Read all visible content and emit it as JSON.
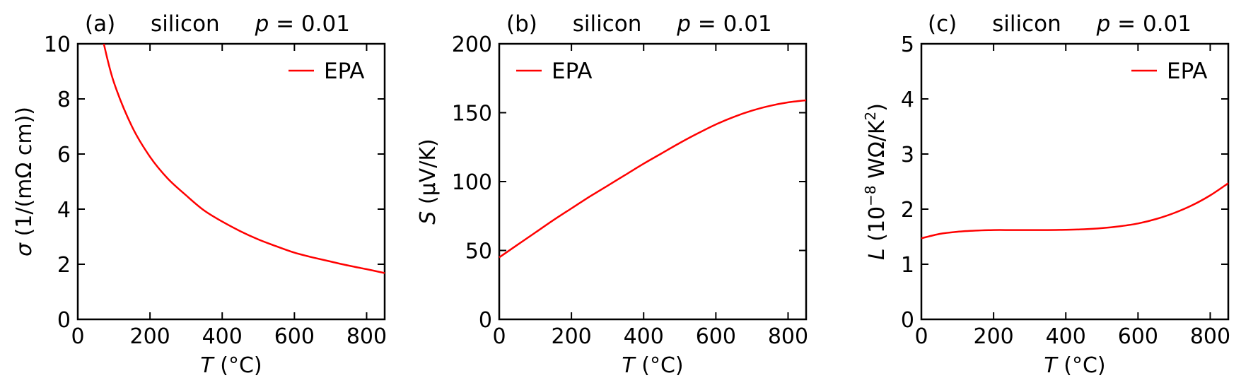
{
  "chart_data": [
    {
      "type": "line",
      "panel_label": "(a)",
      "material": "silicon",
      "param_var": "p",
      "param_rest": " = 0.01",
      "xlabel_var": "T",
      "xlabel_rest": " (°C)",
      "ylabel_var": "σ",
      "ylabel_rest": " (1/(mΩ cm))",
      "xlim": [
        0,
        850
      ],
      "ylim": [
        0,
        10
      ],
      "xticks": [
        "0",
        "200",
        "400",
        "600",
        "800"
      ],
      "yticks": [
        "0",
        "2",
        "4",
        "6",
        "8",
        "10"
      ],
      "legend_position": "top-right",
      "series": [
        {
          "name": "EPA",
          "color": "#ff0000",
          "x": [
            72,
            100,
            150,
            200,
            250,
            300,
            350,
            400,
            450,
            500,
            550,
            600,
            650,
            700,
            750,
            800,
            850
          ],
          "y": [
            10.0,
            8.6,
            7.0,
            5.9,
            5.1,
            4.5,
            3.95,
            3.55,
            3.2,
            2.9,
            2.65,
            2.42,
            2.25,
            2.1,
            1.95,
            1.82,
            1.68
          ]
        }
      ]
    },
    {
      "type": "line",
      "panel_label": "(b)",
      "material": "silicon",
      "param_var": "p",
      "param_rest": " = 0.01",
      "xlabel_var": "T",
      "xlabel_rest": " (°C)",
      "ylabel_var": "S",
      "ylabel_rest": " (μV/K)",
      "xlim": [
        0,
        850
      ],
      "ylim": [
        0,
        200
      ],
      "xticks": [
        "0",
        "200",
        "400",
        "600",
        "800"
      ],
      "yticks": [
        "0",
        "50",
        "100",
        "150",
        "200"
      ],
      "legend_position": "top-left",
      "series": [
        {
          "name": "EPA",
          "color": "#ff0000",
          "x": [
            0,
            50,
            100,
            150,
            200,
            250,
            300,
            350,
            400,
            450,
            500,
            550,
            600,
            650,
            700,
            750,
            800,
            850
          ],
          "y": [
            45,
            54,
            63,
            72,
            80.5,
            89,
            97,
            105,
            113,
            120.5,
            128,
            135,
            141.5,
            147,
            151.5,
            155,
            157.5,
            159
          ]
        }
      ]
    },
    {
      "type": "line",
      "panel_label": "(c)",
      "material": "silicon",
      "param_var": "p",
      "param_rest": " = 0.01",
      "xlabel_var": "T",
      "xlabel_rest": " (°C)",
      "ylabel_var": "L",
      "ylabel_rest": " (10",
      "ylabel_exp1": "−8",
      "ylabel_mid": " WΩ/K",
      "ylabel_exp2": "2",
      "ylabel_end": ")",
      "xlim": [
        0,
        850
      ],
      "ylim": [
        0,
        5
      ],
      "xticks": [
        "0",
        "200",
        "400",
        "600",
        "800"
      ],
      "yticks": [
        "0",
        "1",
        "2",
        "3",
        "4",
        "5"
      ],
      "legend_position": "top-right",
      "series": [
        {
          "name": "EPA",
          "color": "#ff0000",
          "x": [
            0,
            50,
            100,
            150,
            200,
            250,
            300,
            350,
            400,
            450,
            500,
            550,
            600,
            650,
            700,
            750,
            800,
            850
          ],
          "y": [
            1.47,
            1.55,
            1.59,
            1.61,
            1.62,
            1.62,
            1.62,
            1.62,
            1.625,
            1.635,
            1.655,
            1.69,
            1.74,
            1.82,
            1.93,
            2.07,
            2.25,
            2.47
          ]
        }
      ]
    }
  ]
}
